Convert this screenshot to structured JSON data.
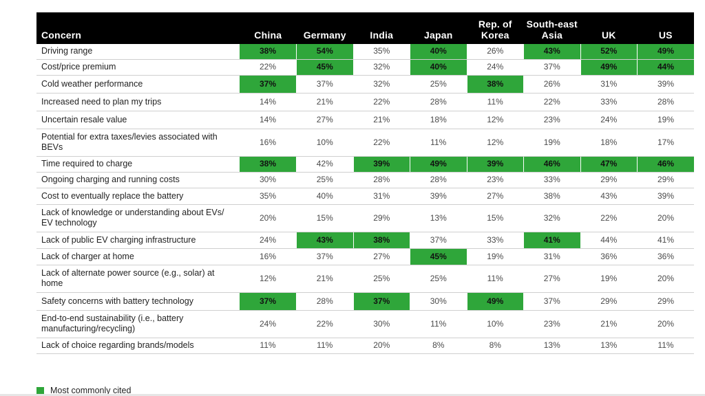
{
  "table": {
    "headers": [
      "Concern",
      "China",
      "Germany",
      "India",
      "Japan",
      "Rep. of Korea",
      "South-east Asia",
      "UK",
      "US"
    ],
    "highlight_color": "#2fa63a",
    "rows": [
      {
        "concern": "Driving range",
        "values": [
          "38%",
          "54%",
          "35%",
          "40%",
          "26%",
          "43%",
          "52%",
          "49%"
        ],
        "highlight": [
          true,
          true,
          false,
          true,
          false,
          true,
          true,
          true
        ]
      },
      {
        "concern": "Cost/price premium",
        "values": [
          "22%",
          "45%",
          "32%",
          "40%",
          "24%",
          "37%",
          "49%",
          "44%"
        ],
        "highlight": [
          false,
          true,
          false,
          true,
          false,
          false,
          true,
          true
        ]
      },
      {
        "concern": "Cold weather performance",
        "values": [
          "37%",
          "37%",
          "32%",
          "25%",
          "38%",
          "26%",
          "31%",
          "39%"
        ],
        "highlight": [
          true,
          false,
          false,
          false,
          true,
          false,
          false,
          false
        ]
      },
      {
        "concern": "Increased need to plan my trips",
        "values": [
          "14%",
          "21%",
          "22%",
          "28%",
          "11%",
          "22%",
          "33%",
          "28%"
        ],
        "highlight": [
          false,
          false,
          false,
          false,
          false,
          false,
          false,
          false
        ]
      },
      {
        "concern": "Uncertain resale value",
        "values": [
          "14%",
          "27%",
          "21%",
          "18%",
          "12%",
          "23%",
          "24%",
          "19%"
        ],
        "highlight": [
          false,
          false,
          false,
          false,
          false,
          false,
          false,
          false
        ]
      },
      {
        "concern": "Potential for extra taxes/levies associated with BEVs",
        "values": [
          "16%",
          "10%",
          "22%",
          "11%",
          "12%",
          "19%",
          "18%",
          "17%"
        ],
        "highlight": [
          false,
          false,
          false,
          false,
          false,
          false,
          false,
          false
        ]
      },
      {
        "concern": "Time required to charge",
        "values": [
          "38%",
          "42%",
          "39%",
          "49%",
          "39%",
          "46%",
          "47%",
          "46%"
        ],
        "highlight": [
          true,
          false,
          true,
          true,
          true,
          true,
          true,
          true
        ]
      },
      {
        "concern": "Ongoing charging and running costs",
        "values": [
          "30%",
          "25%",
          "28%",
          "28%",
          "23%",
          "33%",
          "29%",
          "29%"
        ],
        "highlight": [
          false,
          false,
          false,
          false,
          false,
          false,
          false,
          false
        ]
      },
      {
        "concern": "Cost to eventually replace the battery",
        "values": [
          "35%",
          "40%",
          "31%",
          "39%",
          "27%",
          "38%",
          "43%",
          "39%"
        ],
        "highlight": [
          false,
          false,
          false,
          false,
          false,
          false,
          false,
          false
        ]
      },
      {
        "concern": "Lack of knowledge or understanding about EVs/ EV technology",
        "values": [
          "20%",
          "15%",
          "29%",
          "13%",
          "15%",
          "32%",
          "22%",
          "20%"
        ],
        "highlight": [
          false,
          false,
          false,
          false,
          false,
          false,
          false,
          false
        ]
      },
      {
        "concern": "Lack of public EV charging infrastructure",
        "values": [
          "24%",
          "43%",
          "38%",
          "37%",
          "33%",
          "41%",
          "44%",
          "41%"
        ],
        "highlight": [
          false,
          true,
          true,
          false,
          false,
          true,
          false,
          false
        ]
      },
      {
        "concern": "Lack of charger at home",
        "values": [
          "16%",
          "37%",
          "27%",
          "45%",
          "19%",
          "31%",
          "36%",
          "36%"
        ],
        "highlight": [
          false,
          false,
          false,
          true,
          false,
          false,
          false,
          false
        ]
      },
      {
        "concern": "Lack of alternate power source (e.g., solar) at home",
        "values": [
          "12%",
          "21%",
          "25%",
          "25%",
          "11%",
          "27%",
          "19%",
          "20%"
        ],
        "highlight": [
          false,
          false,
          false,
          false,
          false,
          false,
          false,
          false
        ]
      },
      {
        "concern": "Safety concerns with battery technology",
        "values": [
          "37%",
          "28%",
          "37%",
          "30%",
          "49%",
          "37%",
          "29%",
          "29%"
        ],
        "highlight": [
          true,
          false,
          true,
          false,
          true,
          false,
          false,
          false
        ]
      },
      {
        "concern": "End-to-end sustainability (i.e., battery manufacturing/recycling)",
        "values": [
          "24%",
          "22%",
          "30%",
          "11%",
          "10%",
          "23%",
          "21%",
          "20%"
        ],
        "highlight": [
          false,
          false,
          false,
          false,
          false,
          false,
          false,
          false
        ]
      },
      {
        "concern": "Lack of choice regarding brands/models",
        "values": [
          "11%",
          "11%",
          "20%",
          "8%",
          "8%",
          "13%",
          "13%",
          "11%"
        ],
        "highlight": [
          false,
          false,
          false,
          false,
          false,
          false,
          false,
          false
        ]
      }
    ]
  },
  "legend": {
    "label": "Most commonly cited",
    "color": "#2fa63a"
  }
}
